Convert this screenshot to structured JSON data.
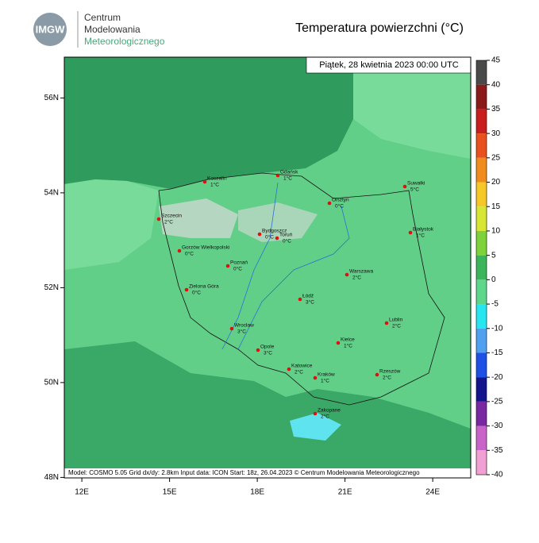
{
  "header": {
    "logo": "IMGW",
    "org": [
      "Centrum",
      "Modelowania",
      "Meteorologicznego"
    ],
    "title": "Temperatura powierzchni (°C)",
    "date": "Piątek, 28 kwietnia 2023 00:00 UTC"
  },
  "map": {
    "lon_range": [
      11.4,
      25.3
    ],
    "lat_range": [
      47.99,
      56.86
    ],
    "lat_ticks": [
      {
        "value": 56,
        "label": "56N"
      },
      {
        "value": 54,
        "label": "54N"
      },
      {
        "value": 52,
        "label": "52N"
      },
      {
        "value": 50,
        "label": "50N"
      },
      {
        "value": 48,
        "label": "48N"
      }
    ],
    "lon_ticks": [
      {
        "value": 12,
        "label": "12E"
      },
      {
        "value": 15,
        "label": "15E"
      },
      {
        "value": 18,
        "label": "18E"
      },
      {
        "value": 21,
        "label": "21E"
      },
      {
        "value": 24,
        "label": "24E"
      }
    ],
    "cities": [
      {
        "name": "Koszalin",
        "temp": "1°C"
      },
      {
        "name": "Gdańsk",
        "temp": "1°C"
      },
      {
        "name": "Suwałki",
        "temp": "5°C"
      },
      {
        "name": "Olsztyn",
        "temp": "0°C"
      },
      {
        "name": "Szczecin",
        "temp": "2°C"
      },
      {
        "name": "Białystok",
        "temp": "1°C"
      },
      {
        "name": "Bydgoszcz",
        "temp": "0°C"
      },
      {
        "name": "Toruń",
        "temp": "0°C"
      },
      {
        "name": "Gorzów Wielkopolski",
        "temp": "0°C"
      },
      {
        "name": "Poznań",
        "temp": "0°C"
      },
      {
        "name": "Warszawa",
        "temp": "2°C"
      },
      {
        "name": "Zielona Góra",
        "temp": "0°C"
      },
      {
        "name": "Łódź",
        "temp": "3°C"
      },
      {
        "name": "Lublin",
        "temp": "2°C"
      },
      {
        "name": "Wrocław",
        "temp": "3°C"
      },
      {
        "name": "Opole",
        "temp": "3°C"
      },
      {
        "name": "Kielce",
        "temp": "1°C"
      },
      {
        "name": "Katowice",
        "temp": "2°C"
      },
      {
        "name": "Kraków",
        "temp": "1°C"
      },
      {
        "name": "Rzeszów",
        "temp": "2°C"
      },
      {
        "name": "Zakopane",
        "temp": "2°C"
      }
    ]
  },
  "colorbar": {
    "range": [
      -40,
      45
    ],
    "ticks": [
      45,
      40,
      35,
      30,
      25,
      20,
      15,
      10,
      5,
      0,
      -5,
      -10,
      -15,
      -20,
      -25,
      -30,
      -35,
      -40
    ],
    "colors": [
      "#4a4a4a",
      "#8b1a1a",
      "#c81e1e",
      "#e8501e",
      "#f08c1e",
      "#f5c828",
      "#d7e632",
      "#7ed23c",
      "#3cb45a",
      "#5ed68c",
      "#28e6f0",
      "#50a0f0",
      "#1e50e6",
      "#14148c",
      "#7828a0",
      "#c864c8",
      "#f0a0d2"
    ]
  },
  "footer": "Model: COSMO 5.05  Grid dx/dy: 2.8km  Input data: ICON  Start: 18z, 26.04.2023  © Centrum Modelowania Meteorologicznego"
}
